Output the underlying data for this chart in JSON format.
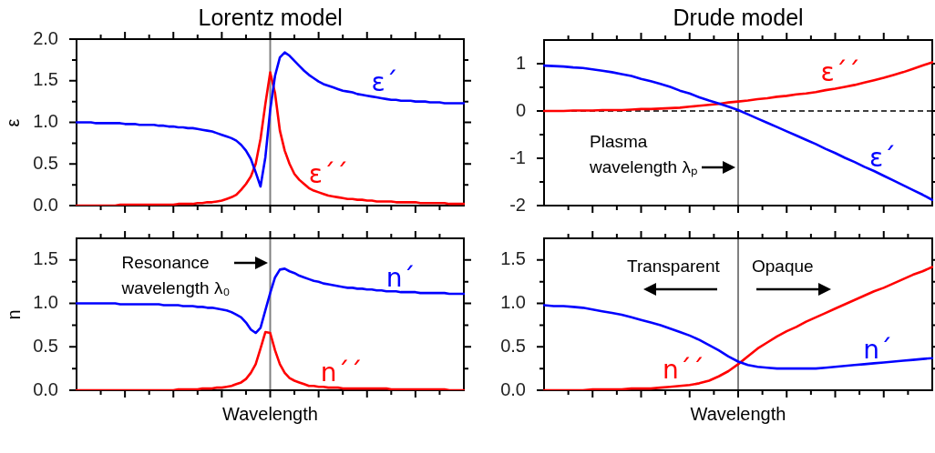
{
  "chart_data": [
    {
      "type": "line",
      "title": "Lorentz model",
      "ylabel": "ε",
      "tick_labels": "y",
      "categories": [
        null,
        null,
        null,
        null,
        null,
        null,
        null,
        null,
        null,
        null,
        null,
        null,
        null,
        null,
        null,
        null,
        null,
        null,
        null,
        null,
        null,
        null,
        null,
        null,
        null,
        null,
        null,
        null,
        null,
        null,
        null,
        null,
        null,
        null,
        null,
        null,
        null,
        null,
        null,
        null,
        null,
        null,
        null,
        null,
        null,
        null,
        null,
        null,
        null,
        null,
        null,
        null,
        null,
        null,
        null,
        null,
        null,
        null,
        null,
        null,
        null,
        null,
        null,
        null,
        null,
        null,
        null,
        null,
        null,
        null,
        null,
        null,
        null,
        null,
        null,
        null,
        null,
        null,
        null,
        null,
        null
      ],
      "series": [
        {
          "name": "ε´",
          "color": "#0000ff",
          "values": [
            1.0,
            1.0,
            1.0,
            1.0,
            0.99,
            0.99,
            0.99,
            0.99,
            0.99,
            0.99,
            0.98,
            0.98,
            0.98,
            0.97,
            0.97,
            0.97,
            0.97,
            0.96,
            0.96,
            0.95,
            0.95,
            0.94,
            0.94,
            0.93,
            0.93,
            0.92,
            0.91,
            0.9,
            0.89,
            0.87,
            0.85,
            0.83,
            0.81,
            0.78,
            0.73,
            0.66,
            0.56,
            0.4,
            0.23,
            0.58,
            1.15,
            1.56,
            1.78,
            1.84,
            1.8,
            1.74,
            1.68,
            1.62,
            1.57,
            1.53,
            1.49,
            1.46,
            1.44,
            1.42,
            1.4,
            1.38,
            1.37,
            1.36,
            1.34,
            1.33,
            1.32,
            1.31,
            1.3,
            1.29,
            1.28,
            1.27,
            1.27,
            1.26,
            1.26,
            1.26,
            1.25,
            1.25,
            1.25,
            1.24,
            1.24,
            1.24,
            1.23,
            1.23,
            1.23,
            1.23,
            1.23
          ]
        },
        {
          "name": "ε´´",
          "color": "#ff0000",
          "values": [
            0,
            0,
            0,
            0,
            0,
            0,
            0,
            0,
            0,
            0.01,
            0.01,
            0.01,
            0.01,
            0.01,
            0.01,
            0.01,
            0.01,
            0.01,
            0.01,
            0.01,
            0.01,
            0.02,
            0.02,
            0.02,
            0.02,
            0.03,
            0.03,
            0.04,
            0.04,
            0.05,
            0.06,
            0.08,
            0.1,
            0.13,
            0.19,
            0.26,
            0.35,
            0.5,
            0.8,
            1.22,
            1.6,
            1.35,
            0.9,
            0.66,
            0.5,
            0.38,
            0.31,
            0.26,
            0.21,
            0.18,
            0.16,
            0.14,
            0.12,
            0.11,
            0.1,
            0.09,
            0.08,
            0.08,
            0.07,
            0.07,
            0.06,
            0.06,
            0.05,
            0.05,
            0.05,
            0.05,
            0.04,
            0.04,
            0.04,
            0.04,
            0.04,
            0.03,
            0.03,
            0.03,
            0.03,
            0.03,
            0.03,
            0.02,
            0.02,
            0.02,
            0.02
          ]
        }
      ],
      "ylim": [
        0,
        2
      ],
      "yticks": [
        {
          "value": 0,
          "label": "0.0"
        },
        {
          "value": 0.25,
          "label": null
        },
        {
          "value": 0.5,
          "label": "0.5"
        },
        {
          "value": 0.75,
          "label": null
        },
        {
          "value": 1,
          "label": "1.0"
        },
        {
          "value": 1.25,
          "label": null
        },
        {
          "value": 1.5,
          "label": "1.5"
        },
        {
          "value": 1.75,
          "label": null
        },
        {
          "value": 2,
          "label": "2.0"
        }
      ],
      "ref_lines": [
        {
          "axis": "x",
          "color": "#808080"
        }
      ]
    },
    {
      "type": "line",
      "xlabel": "Wavelength",
      "ylabel": "n",
      "tick_labels": "y",
      "categories": [
        null,
        null,
        null,
        null,
        null,
        null,
        null,
        null,
        null,
        null,
        null,
        null,
        null,
        null,
        null,
        null,
        null,
        null,
        null,
        null,
        null,
        null,
        null,
        null,
        null,
        null,
        null,
        null,
        null,
        null,
        null,
        null,
        null,
        null,
        null,
        null,
        null,
        null,
        null,
        null,
        null,
        null,
        null,
        null,
        null,
        null,
        null,
        null,
        null,
        null,
        null,
        null,
        null,
        null,
        null,
        null,
        null,
        null,
        null,
        null,
        null,
        null,
        null,
        null,
        null,
        null,
        null,
        null,
        null,
        null,
        null,
        null,
        null,
        null,
        null,
        null,
        null,
        null,
        null,
        null,
        null
      ],
      "series": [
        {
          "name": "n´",
          "color": "#0000ff",
          "values": [
            1.0,
            1.0,
            1.0,
            1.0,
            1.0,
            1.0,
            1.0,
            1.0,
            1.0,
            0.99,
            0.99,
            0.99,
            0.99,
            0.99,
            0.99,
            0.99,
            0.99,
            0.99,
            0.98,
            0.98,
            0.98,
            0.98,
            0.97,
            0.97,
            0.97,
            0.96,
            0.96,
            0.95,
            0.95,
            0.94,
            0.93,
            0.92,
            0.9,
            0.87,
            0.84,
            0.78,
            0.7,
            0.66,
            0.72,
            0.92,
            1.12,
            1.3,
            1.39,
            1.4,
            1.37,
            1.35,
            1.32,
            1.3,
            1.28,
            1.26,
            1.25,
            1.23,
            1.22,
            1.21,
            1.2,
            1.19,
            1.18,
            1.18,
            1.17,
            1.17,
            1.16,
            1.16,
            1.15,
            1.15,
            1.14,
            1.14,
            1.14,
            1.13,
            1.13,
            1.13,
            1.13,
            1.12,
            1.12,
            1.12,
            1.12,
            1.12,
            1.12,
            1.11,
            1.11,
            1.11,
            1.11
          ]
        },
        {
          "name": "n´´",
          "color": "#ff0000",
          "values": [
            0,
            0,
            0,
            0,
            0,
            0,
            0,
            0,
            0,
            0,
            0,
            0,
            0,
            0,
            0,
            0,
            0,
            0,
            0,
            0,
            0,
            0.01,
            0.01,
            0.01,
            0.01,
            0.01,
            0.02,
            0.02,
            0.02,
            0.03,
            0.03,
            0.04,
            0.05,
            0.07,
            0.09,
            0.13,
            0.2,
            0.3,
            0.48,
            0.67,
            0.66,
            0.46,
            0.3,
            0.2,
            0.14,
            0.11,
            0.09,
            0.07,
            0.05,
            0.05,
            0.04,
            0.04,
            0.03,
            0.03,
            0.03,
            0.02,
            0.02,
            0.02,
            0.02,
            0.02,
            0.02,
            0.02,
            0.02,
            0.02,
            0.02,
            0.01,
            0.01,
            0.01,
            0.01,
            0.01,
            0.01,
            0.01,
            0.01,
            0.01,
            0.01,
            0.01,
            0.01,
            0,
            0,
            0,
            0
          ]
        }
      ],
      "ylim": [
        0,
        1.75
      ],
      "yticks": [
        {
          "value": 0,
          "label": "0.0"
        },
        {
          "value": 0.25,
          "label": null
        },
        {
          "value": 0.5,
          "label": "0.5"
        },
        {
          "value": 0.75,
          "label": null
        },
        {
          "value": 1,
          "label": "1.0"
        },
        {
          "value": 1.25,
          "label": null
        },
        {
          "value": 1.5,
          "label": "1.5"
        }
      ],
      "ref_lines": [
        {
          "axis": "x",
          "color": "#808080"
        }
      ],
      "annotations": [
        "Resonance\nwavelength λ₀"
      ]
    },
    {
      "type": "line",
      "title": "Drude model",
      "tick_labels": "y",
      "categories": [
        null,
        null,
        null,
        null,
        null,
        null,
        null,
        null,
        null,
        null,
        null,
        null,
        null,
        null,
        null,
        null,
        null,
        null,
        null,
        null,
        null,
        null,
        null,
        null,
        null,
        null,
        null,
        null,
        null,
        null,
        null,
        null,
        null,
        null,
        null,
        null,
        null,
        null,
        null,
        null,
        null
      ],
      "series": [
        {
          "name": "ε´",
          "color": "#0000ff",
          "values": [
            0.96,
            0.95,
            0.94,
            0.92,
            0.91,
            0.88,
            0.85,
            0.82,
            0.78,
            0.74,
            0.68,
            0.63,
            0.57,
            0.51,
            0.43,
            0.37,
            0.29,
            0.22,
            0.16,
            0.09,
            0.02,
            -0.07,
            -0.16,
            -0.25,
            -0.34,
            -0.43,
            -0.52,
            -0.61,
            -0.7,
            -0.8,
            -0.89,
            -0.99,
            -1.08,
            -1.18,
            -1.27,
            -1.37,
            -1.47,
            -1.57,
            -1.67,
            -1.77,
            -1.88
          ]
        },
        {
          "name": "ε´´",
          "color": "#ff0000",
          "values": [
            0,
            0,
            0,
            0.01,
            0.01,
            0.01,
            0.02,
            0.02,
            0.02,
            0.03,
            0.04,
            0.04,
            0.05,
            0.06,
            0.07,
            0.09,
            0.11,
            0.13,
            0.15,
            0.18,
            0.2,
            0.22,
            0.25,
            0.27,
            0.3,
            0.32,
            0.35,
            0.37,
            0.4,
            0.44,
            0.47,
            0.51,
            0.55,
            0.6,
            0.65,
            0.7,
            0.76,
            0.82,
            0.89,
            0.96,
            1.03
          ]
        }
      ],
      "ylim": [
        -2,
        1.5
      ],
      "yticks": [
        -2,
        {
          "value": -1.5,
          "label": null
        },
        -1,
        {
          "value": -0.5,
          "label": null
        },
        0,
        {
          "value": 0.5,
          "label": null
        },
        1
      ],
      "ref_lines": [
        {
          "axis": "x",
          "color": "#808080"
        },
        {
          "axis": "y",
          "value": 0,
          "color": "#000000",
          "line_style": "dashed"
        }
      ],
      "annotations": [
        "Plasma\nwavelength λₚ"
      ]
    },
    {
      "type": "line",
      "xlabel": "Wavelength",
      "tick_labels": "y",
      "categories": [
        null,
        null,
        null,
        null,
        null,
        null,
        null,
        null,
        null,
        null,
        null,
        null,
        null,
        null,
        null,
        null,
        null,
        null,
        null,
        null,
        null,
        null,
        null,
        null,
        null,
        null,
        null,
        null,
        null,
        null,
        null,
        null,
        null,
        null,
        null,
        null,
        null,
        null,
        null,
        null,
        null
      ],
      "series": [
        {
          "name": "n´",
          "color": "#0000ff",
          "values": [
            0.98,
            0.97,
            0.97,
            0.96,
            0.95,
            0.93,
            0.91,
            0.89,
            0.87,
            0.84,
            0.81,
            0.78,
            0.75,
            0.71,
            0.67,
            0.63,
            0.58,
            0.52,
            0.46,
            0.39,
            0.33,
            0.29,
            0.27,
            0.26,
            0.25,
            0.25,
            0.25,
            0.25,
            0.25,
            0.26,
            0.27,
            0.28,
            0.29,
            0.3,
            0.31,
            0.32,
            0.33,
            0.34,
            0.35,
            0.36,
            0.37
          ]
        },
        {
          "name": "n´´",
          "color": "#ff0000",
          "values": [
            0,
            0,
            0,
            0,
            0,
            0.01,
            0.01,
            0.01,
            0.01,
            0.02,
            0.02,
            0.02,
            0.03,
            0.04,
            0.05,
            0.06,
            0.08,
            0.11,
            0.16,
            0.22,
            0.3,
            0.39,
            0.48,
            0.55,
            0.62,
            0.68,
            0.73,
            0.79,
            0.84,
            0.89,
            0.94,
            0.99,
            1.04,
            1.09,
            1.14,
            1.18,
            1.23,
            1.28,
            1.33,
            1.37,
            1.42
          ]
        }
      ],
      "ylim": [
        0,
        1.75
      ],
      "yticks": [
        {
          "value": 0,
          "label": "0.0"
        },
        {
          "value": 0.25,
          "label": null
        },
        {
          "value": 0.5,
          "label": "0.5"
        },
        {
          "value": 0.75,
          "label": null
        },
        {
          "value": 1,
          "label": "1.0"
        },
        {
          "value": 1.25,
          "label": null
        },
        {
          "value": 1.5,
          "label": "1.5"
        }
      ],
      "ref_lines": [
        {
          "axis": "x",
          "color": "#808080"
        }
      ],
      "annotations": [
        "Transparent",
        "Opaque"
      ]
    }
  ]
}
